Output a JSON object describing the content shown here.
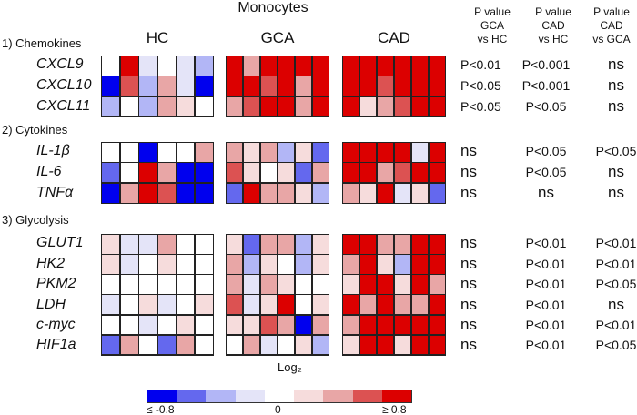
{
  "title": "Monocytes",
  "groups": [
    "HC",
    "GCA",
    "CAD"
  ],
  "sections": [
    "1) Chemokines",
    "2) Cytokines",
    "3) Glycolysis"
  ],
  "genes": [
    "CXCL9",
    "CXCL10",
    "CXCL11",
    "IL-1β",
    "IL-6",
    "TNFα",
    "GLUT1",
    "HK2",
    "PKM2",
    "LDH",
    "c-myc",
    "HIF1a"
  ],
  "pvalue_headers": [
    "P value\nGCA\nvs HC",
    "P value\nCAD\nvs HC",
    "P value\nCAD\nvs GCA"
  ],
  "pvalues": [
    [
      "P<0.01",
      "P<0.001",
      "ns"
    ],
    [
      "P<0.05",
      "P<0.001",
      "ns"
    ],
    [
      "P<0.05",
      "P<0.05",
      "ns"
    ],
    [
      "ns",
      "P<0.05",
      "P<0.05"
    ],
    [
      "ns",
      "P<0.05",
      "ns"
    ],
    [
      "ns",
      "ns",
      "ns"
    ],
    [
      "ns",
      "P<0.01",
      "P<0.01"
    ],
    [
      "ns",
      "P<0.01",
      "P<0.01"
    ],
    [
      "ns",
      "P<0.01",
      "P<0.05"
    ],
    [
      "ns",
      "P<0.01",
      "ns"
    ],
    [
      "ns",
      "P<0.01",
      "P<0.01"
    ],
    [
      "ns",
      "P<0.01",
      "P<0.05"
    ]
  ],
  "colorbar": {
    "label": "Log₂",
    "min_label": "≤ -0.8",
    "mid_label": "0",
    "max_label": "≥ 0.8",
    "colors": [
      "#0000ee",
      "#6468ee",
      "#b2b6f6",
      "#e4e4f8",
      "#ffffff",
      "#f6dcdc",
      "#e8a6a6",
      "#dc5252",
      "#dc0000"
    ]
  },
  "chart_data": {
    "type": "heatmap",
    "title": "Monocytes",
    "xlabel": "Log₂",
    "range": [
      -0.8,
      0.8
    ],
    "rows": [
      "CXCL9",
      "CXCL10",
      "CXCL11",
      "IL-1β",
      "IL-6",
      "TNFα",
      "GLUT1",
      "HK2",
      "PKM2",
      "LDH",
      "c-myc",
      "HIF1a"
    ],
    "series": [
      {
        "name": "HC",
        "values": [
          [
            0,
            0.8,
            -0.2,
            0,
            -0.2,
            -0.4
          ],
          [
            -0.8,
            0.6,
            -0.4,
            0.4,
            -0.2,
            -0.8
          ],
          [
            -0.4,
            0,
            -0.4,
            0.4,
            0.2,
            0
          ],
          [
            0,
            0,
            -0.8,
            0,
            0,
            0.4
          ],
          [
            -0.6,
            0,
            0.8,
            0.4,
            -0.8,
            -0.8
          ],
          [
            -0.8,
            0.4,
            0.8,
            0.6,
            -0.8,
            -0.8
          ],
          [
            0.2,
            -0.2,
            -0.2,
            0.4,
            0,
            0
          ],
          [
            0.2,
            -0.2,
            0,
            0.2,
            0,
            0
          ],
          [
            0,
            0,
            0,
            0,
            0,
            0
          ],
          [
            -0.2,
            0,
            0.2,
            -0.2,
            0,
            0.2
          ],
          [
            0,
            0,
            -0.2,
            0,
            0.2,
            0
          ],
          [
            -0.6,
            0.4,
            0,
            -0.6,
            0.4,
            0
          ]
        ]
      },
      {
        "name": "GCA",
        "values": [
          [
            0.8,
            0.4,
            0.8,
            0.8,
            0.8,
            0.8
          ],
          [
            0.8,
            0.8,
            0.6,
            0.8,
            0.4,
            0.8
          ],
          [
            0.4,
            0.6,
            0.8,
            0.8,
            0.4,
            0.8
          ],
          [
            0.4,
            0.2,
            0.4,
            -0.4,
            0.2,
            -0.6
          ],
          [
            0.6,
            0.2,
            0,
            0.2,
            -0.6,
            0.4
          ],
          [
            -0.6,
            0.8,
            0.4,
            0.4,
            0.2,
            -0.4
          ],
          [
            0.2,
            -0.6,
            0.4,
            0.4,
            -0.4,
            0.2
          ],
          [
            0.4,
            -0.4,
            0.2,
            0,
            -0.4,
            0.2
          ],
          [
            0.4,
            -0.2,
            0.4,
            0.2,
            0,
            0
          ],
          [
            0.6,
            -0.2,
            0.2,
            0.8,
            0,
            0.2
          ],
          [
            0.2,
            0.2,
            0.6,
            0.4,
            -0.8,
            0.4
          ],
          [
            0,
            0.4,
            -0.2,
            0,
            0.2,
            -0.4
          ]
        ]
      },
      {
        "name": "CAD",
        "values": [
          [
            0.8,
            0.8,
            0.8,
            0.8,
            0.8,
            0.8
          ],
          [
            0.8,
            0.8,
            0.6,
            0.8,
            0.8,
            0.8
          ],
          [
            0.8,
            0.2,
            0.4,
            0.6,
            0.8,
            0.8
          ],
          [
            0.8,
            0.8,
            0.8,
            0.8,
            -0.2,
            0.8
          ],
          [
            0.8,
            0.8,
            0.4,
            0.6,
            0.8,
            0.8
          ],
          [
            0.4,
            0.2,
            0.8,
            -0.2,
            0.2,
            -0.6
          ],
          [
            0.8,
            0.8,
            0.4,
            0.4,
            0.8,
            0.8
          ],
          [
            0.4,
            0.8,
            0.2,
            -0.4,
            0.8,
            0.8
          ],
          [
            0.2,
            0.8,
            0.8,
            0.2,
            0.8,
            0.4
          ],
          [
            0.8,
            0.4,
            0.8,
            0.4,
            0.4,
            0.8
          ],
          [
            0.4,
            0.8,
            0.8,
            0.8,
            0.8,
            0.8
          ],
          [
            0.2,
            0.8,
            0.8,
            0.2,
            0.8,
            0.8
          ]
        ]
      }
    ]
  }
}
